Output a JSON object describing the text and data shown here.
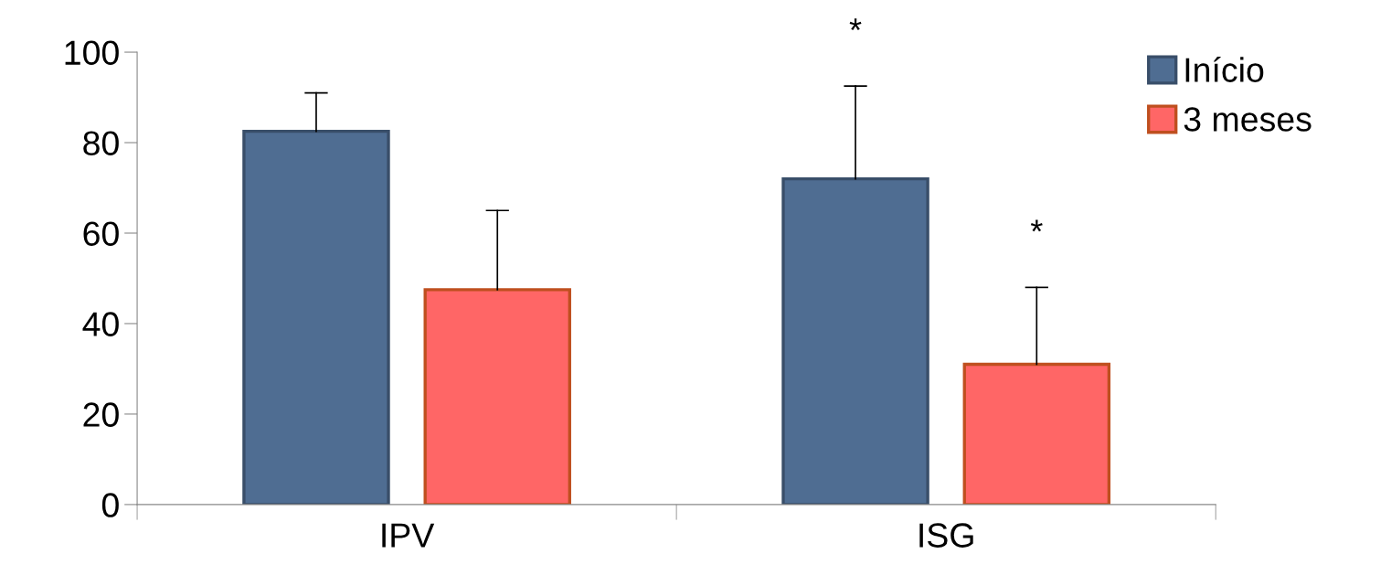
{
  "chart_data": {
    "type": "bar",
    "categories": [
      "IPV",
      "ISG"
    ],
    "series": [
      {
        "name": "Início",
        "color": "#4f6d92",
        "values": [
          82.5,
          72
        ],
        "errors": [
          [
            82.5,
            91
          ],
          [
            72,
            92.5
          ]
        ]
      },
      {
        "name": "3 meses",
        "color": "#ff6666",
        "values": [
          47.5,
          31
        ],
        "errors": [
          [
            47.5,
            65
          ],
          [
            31,
            48
          ]
        ]
      }
    ],
    "ylim": [
      0,
      100
    ],
    "yticks": [
      0,
      20,
      40,
      60,
      80,
      100
    ],
    "grid": false,
    "legend": "top right",
    "annotations": [
      "*",
      "*"
    ]
  }
}
